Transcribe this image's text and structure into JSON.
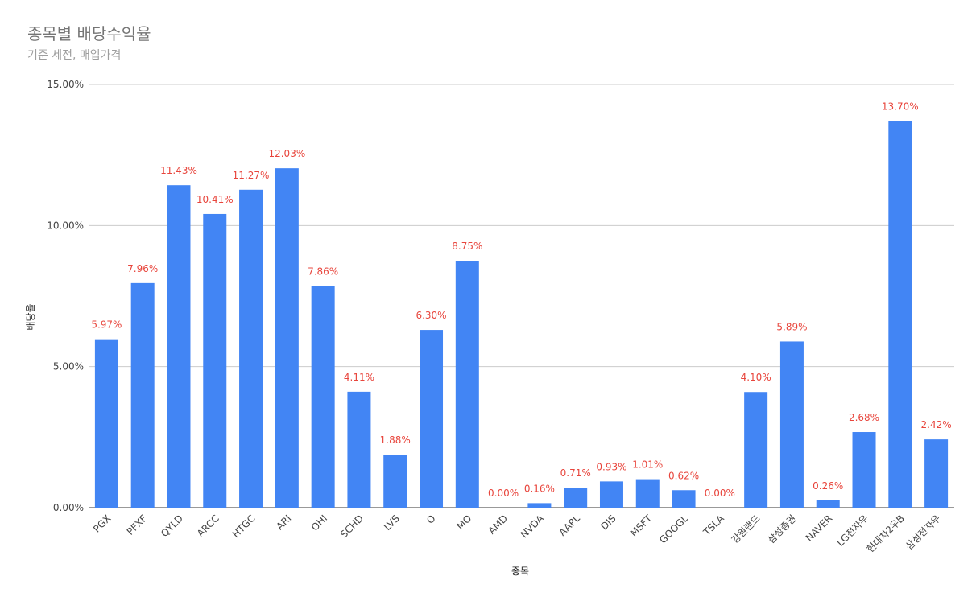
{
  "chart_data": {
    "type": "bar",
    "title": "종목별 배당수익율",
    "subtitle": "기준 세전, 매입가격",
    "xlabel": "종목",
    "ylabel": "배당율",
    "ylim": [
      0,
      15
    ],
    "yticks": [
      "0.00%",
      "5.00%",
      "10.00%",
      "15.00%"
    ],
    "ytick_values": [
      0,
      5,
      10,
      15
    ],
    "grid": true,
    "categories": [
      "PGX",
      "PFXF",
      "QYLD",
      "ARCC",
      "HTGC",
      "ARI",
      "OHI",
      "SCHD",
      "LVS",
      "O",
      "MO",
      "AMD",
      "NVDA",
      "AAPL",
      "DIS",
      "MSFT",
      "GOOGL",
      "TSLA",
      "강원랜드",
      "삼성증권",
      "NAVER",
      "LG전자우",
      "현대차2우B",
      "삼성전자우"
    ],
    "values": [
      5.97,
      7.96,
      11.43,
      10.41,
      11.27,
      12.03,
      7.86,
      4.11,
      1.88,
      6.3,
      8.75,
      0.0,
      0.16,
      0.71,
      0.93,
      1.01,
      0.62,
      0.0,
      4.1,
      5.89,
      0.26,
      2.68,
      13.7,
      2.42
    ],
    "data_labels": [
      "5.97%",
      "7.96%",
      "11.43%",
      "10.41%",
      "11.27%",
      "12.03%",
      "7.86%",
      "4.11%",
      "1.88%",
      "6.30%",
      "8.75%",
      "0.00%",
      "0.16%",
      "0.71%",
      "0.93%",
      "1.01%",
      "0.62%",
      "0.00%",
      "4.10%",
      "5.89%",
      "0.26%",
      "2.68%",
      "13.70%",
      "2.42%"
    ],
    "bar_color": "#4285f4",
    "label_color": "#e8453c"
  }
}
